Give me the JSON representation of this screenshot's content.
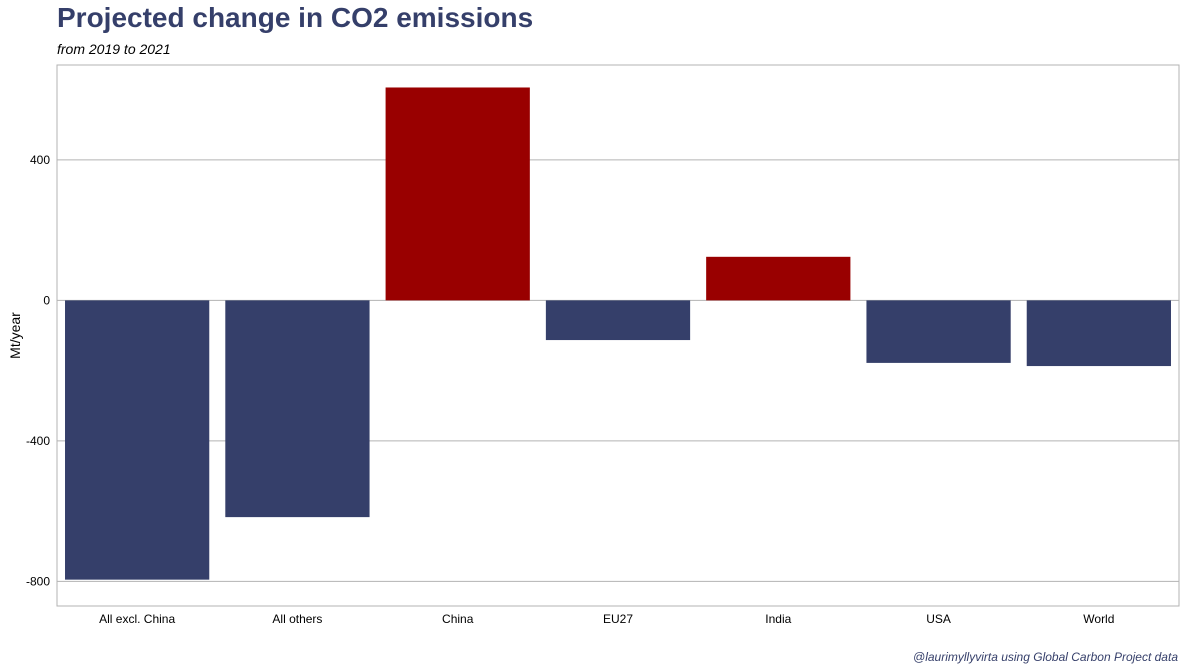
{
  "chart_data": {
    "type": "bar",
    "title": "Projected change in CO2 emissions",
    "subtitle": "from 2019 to 2021",
    "ylabel": "Mt/year",
    "caption": "@laurimyllyvirta using Global Carbon Project data",
    "categories": [
      "All excl. China",
      "All others",
      "China",
      "EU27",
      "India",
      "USA",
      "World"
    ],
    "values": [
      -795,
      -617,
      606,
      -113,
      124,
      -178,
      -187
    ],
    "ylim": [
      -870,
      670
    ],
    "yticks": [
      -800,
      -400,
      0,
      400
    ],
    "grid": true,
    "colors": {
      "positive": "#990000",
      "negative": "#353f6a",
      "grid": "#b3b3b3",
      "panel_border": "#b3b3b3"
    }
  }
}
